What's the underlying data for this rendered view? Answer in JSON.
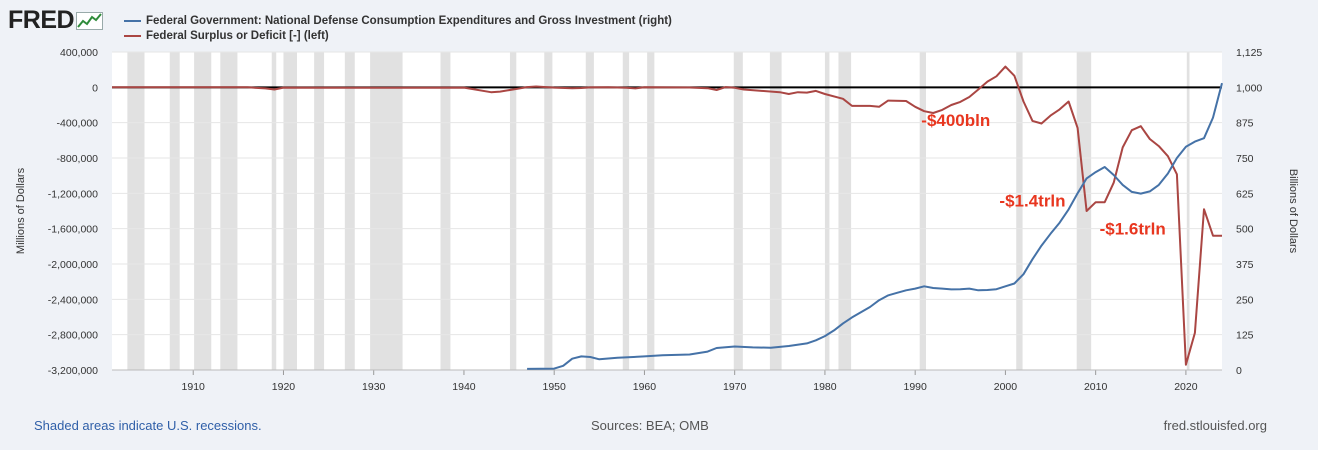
{
  "brand": {
    "name": "FRED"
  },
  "legend": [
    {
      "label": "Federal Government: National Defense Consumption Expenditures and Gross Investment (right)",
      "color": "#4572a7"
    },
    {
      "label": "Federal Surplus or Deficit [-] (left)",
      "color": "#aa4643"
    }
  ],
  "footer": {
    "recessions": "Shaded areas indicate U.S. recessions.",
    "sources": "Sources: BEA; OMB",
    "site": "fred.stlouisfed.org"
  },
  "chart_data": {
    "type": "line",
    "x_range": [
      1901,
      2024
    ],
    "x_ticks": [
      "1910",
      "1920",
      "1930",
      "1940",
      "1950",
      "1960",
      "1970",
      "1980",
      "1990",
      "2000",
      "2010",
      "2020"
    ],
    "left_axis": {
      "label": "Millions of Dollars",
      "range": [
        -3200000,
        400000
      ],
      "ticks": [
        400000,
        0,
        -400000,
        -800000,
        -1200000,
        -1600000,
        -2000000,
        -2400000,
        -2800000,
        -3200000
      ],
      "tick_labels": [
        "400,000",
        "0",
        "-400,000",
        "-800,000",
        "-1,200,000",
        "-1,600,000",
        "-2,000,000",
        "-2,400,000",
        "-2,800,000",
        "-3,200,000"
      ]
    },
    "right_axis": {
      "label": "Billions of Dollars",
      "range": [
        0,
        1125
      ],
      "ticks": [
        1125,
        1000,
        875,
        750,
        625,
        500,
        375,
        250,
        125,
        0
      ],
      "tick_labels": [
        "1,125",
        "1,000",
        "875",
        "750",
        "625",
        "500",
        "375",
        "250",
        "125",
        "0"
      ]
    },
    "recessions": [
      [
        1902.7,
        1904.6
      ],
      [
        1907.4,
        1908.5
      ],
      [
        1910.1,
        1912.0
      ],
      [
        1913.0,
        1914.9
      ],
      [
        1918.7,
        1919.2
      ],
      [
        1920.0,
        1921.5
      ],
      [
        1923.4,
        1924.5
      ],
      [
        1926.8,
        1927.9
      ],
      [
        1929.6,
        1933.2
      ],
      [
        1937.4,
        1938.5
      ],
      [
        1945.1,
        1945.8
      ],
      [
        1948.9,
        1949.8
      ],
      [
        1953.5,
        1954.4
      ],
      [
        1957.6,
        1958.3
      ],
      [
        1960.3,
        1961.1
      ],
      [
        1969.9,
        1970.9
      ],
      [
        1973.9,
        1975.2
      ],
      [
        1980.0,
        1980.5
      ],
      [
        1981.5,
        1982.9
      ],
      [
        1990.5,
        1991.2
      ],
      [
        2001.2,
        2001.9
      ],
      [
        2007.9,
        2009.5
      ],
      [
        2020.1,
        2020.4
      ]
    ],
    "series": [
      {
        "name": "Federal Surplus or Deficit [-] (left)",
        "axis": "left",
        "color": "#aa4643",
        "x": [
          1901,
          1910,
          1916,
          1918,
          1919,
          1920,
          1930,
          1940,
          1943,
          1944,
          1946,
          1947,
          1948,
          1950,
          1952,
          1953,
          1954,
          1956,
          1958,
          1959,
          1960,
          1965,
          1967,
          1968,
          1969,
          1970,
          1971,
          1975,
          1976,
          1977,
          1978,
          1979,
          1980,
          1982,
          1983,
          1985,
          1986,
          1987,
          1989,
          1990,
          1991,
          1992,
          1993,
          1994,
          1995,
          1996,
          1997,
          1998,
          1999,
          2000,
          2001,
          2002,
          2003,
          2004,
          2005,
          2006,
          2007,
          2008,
          2009,
          2010,
          2011,
          2012,
          2013,
          2014,
          2015,
          2016,
          2017,
          2018,
          2019,
          2020,
          2021,
          2022,
          2023,
          2024
        ],
        "values": [
          0,
          0,
          0,
          -12000,
          -25000,
          -3000,
          -5000,
          -3000,
          -55000,
          -48000,
          -15000,
          3000,
          10000,
          -3000,
          -10000,
          -7000,
          -1000,
          0,
          -5000,
          -12000,
          0,
          -2000,
          -10000,
          -30000,
          3000,
          -5000,
          -25000,
          -55000,
          -75000,
          -55000,
          -60000,
          -40000,
          -75000,
          -130000,
          -210000,
          -210000,
          -220000,
          -150000,
          -155000,
          -220000,
          -270000,
          -290000,
          -255000,
          -200000,
          -165000,
          -110000,
          -25000,
          65000,
          125000,
          235000,
          130000,
          -160000,
          -380000,
          -410000,
          -320000,
          -250000,
          -160000,
          -460000,
          -1400000,
          -1300000,
          -1300000,
          -1080000,
          -680000,
          -485000,
          -440000,
          -585000,
          -665000,
          -780000,
          -985000,
          -3140000,
          -2780000,
          -1380000,
          -1680000,
          -1680000
        ]
      },
      {
        "name": "Federal Government: National Defense Consumption Expenditures and Gross Investment (right)",
        "axis": "right",
        "color": "#4572a7",
        "x": [
          1947,
          1950,
          1951,
          1952,
          1953,
          1954,
          1955,
          1957,
          1960,
          1962,
          1965,
          1967,
          1968,
          1970,
          1972,
          1974,
          1976,
          1978,
          1979,
          1980,
          1981,
          1982,
          1983,
          1985,
          1986,
          1987,
          1988,
          1989,
          1990,
          1991,
          1992,
          1993,
          1994,
          1995,
          1996,
          1997,
          1998,
          1999,
          2000,
          2001,
          2002,
          2003,
          2004,
          2005,
          2006,
          2007,
          2008,
          2009,
          2010,
          2011,
          2012,
          2013,
          2014,
          2015,
          2016,
          2017,
          2018,
          2019,
          2020,
          2021,
          2022,
          2023,
          2024
        ],
        "values": [
          4,
          5,
          15,
          40,
          48,
          46,
          38,
          43,
          48,
          52,
          55,
          65,
          78,
          83,
          80,
          79,
          85,
          94,
          105,
          120,
          140,
          165,
          186,
          223,
          247,
          264,
          273,
          282,
          288,
          296,
          290,
          288,
          285,
          286,
          288,
          282,
          283,
          286,
          296,
          306,
          339,
          392,
          440,
          482,
          521,
          568,
          625,
          678,
          700,
          718,
          690,
          655,
          630,
          624,
          632,
          655,
          695,
          750,
          790,
          808,
          820,
          893,
          1015
        ]
      }
    ],
    "annotations": [
      {
        "text": "-$400bln",
        "x": 1994.5,
        "y": -440000,
        "color": "#e8361f"
      },
      {
        "text": "-$1.4trln",
        "x": 2003.0,
        "y": -1350000,
        "color": "#e8361f"
      },
      {
        "text": "-$1.6trln",
        "x": 2014.1,
        "y": -1665000,
        "color": "#e8361f"
      }
    ]
  }
}
